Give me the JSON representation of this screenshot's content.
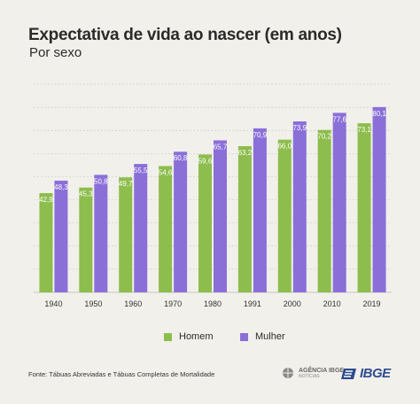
{
  "header": {
    "title": "Expectativa de vida ao nascer (em anos)",
    "subtitle": "Por sexo"
  },
  "colors": {
    "homem": "#8dbd4c",
    "mulher": "#8a6fd9",
    "background": "#f2f0eb"
  },
  "chart_data": {
    "type": "bar",
    "categories": [
      "1940",
      "1950",
      "1960",
      "1970",
      "1980",
      "1991",
      "2000",
      "2010",
      "2019"
    ],
    "series": [
      {
        "name": "Homem",
        "values": [
          42.9,
          45.3,
          49.7,
          54.6,
          59.6,
          63.2,
          66.0,
          70.2,
          73.1
        ],
        "labels": [
          "42,9",
          "45,3",
          "49,7",
          "54,6",
          "59,6",
          "63,2",
          "66,0",
          "70,2",
          "73,1"
        ]
      },
      {
        "name": "Mulher",
        "values": [
          48.3,
          50.8,
          55.5,
          60.8,
          65.7,
          70.9,
          73.9,
          77.6,
          80.1
        ],
        "labels": [
          "48,3",
          "50,8",
          "55,5",
          "60,8",
          "65,7",
          "70,9",
          "73,9",
          "77,6",
          "80,1"
        ]
      }
    ],
    "ylim": [
      0,
      90
    ],
    "grid": true,
    "legend_position": "bottom"
  },
  "legend": {
    "homem": "Homem",
    "mulher": "Mulher"
  },
  "footer": {
    "source": "Fonte: Tábuas Abreviadas e Tábuas Completas de Mortalidade",
    "agencia": "AGÊNCIA IBGE",
    "agencia_sub": "NOTÍCIAS",
    "ibge": "IBGE"
  }
}
